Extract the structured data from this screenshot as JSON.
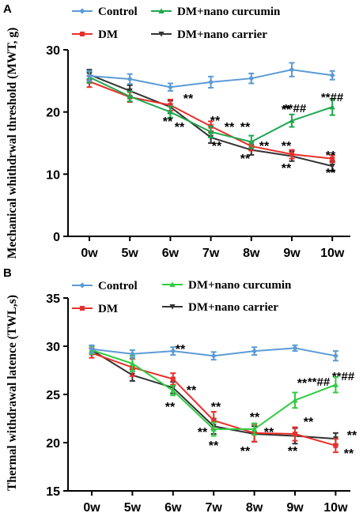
{
  "chart_data": [
    {
      "type": "line",
      "panel_label": "A",
      "title": "",
      "xlabel": "",
      "ylabel": "Mechanical whithdrwal threshold (MWT, g)",
      "ylim": [
        0,
        30
      ],
      "yticks": [
        "0",
        "10",
        "20",
        "30"
      ],
      "categories": [
        "0w",
        "5w",
        "6w",
        "7w",
        "8w",
        "9w",
        "10w"
      ],
      "legend_position": "top",
      "series": [
        {
          "name": "Control",
          "color": "#5b9bd5",
          "marker": "diamond",
          "values": [
            25.8,
            25.3,
            24.0,
            24.8,
            25.4,
            26.8,
            25.9
          ],
          "errors": [
            0.8,
            0.8,
            0.6,
            0.9,
            0.8,
            1.1,
            0.7
          ]
        },
        {
          "name": "DM",
          "color": "#e8302a",
          "marker": "square",
          "values": [
            24.9,
            22.4,
            21.1,
            17.7,
            14.5,
            13.2,
            12.5
          ],
          "errors": [
            0.9,
            0.8,
            0.9,
            0.8,
            0.7,
            0.7,
            0.6
          ]
        },
        {
          "name": "DM+nano curcumin",
          "color": "#1fa84f",
          "marker": "triangle",
          "values": [
            25.6,
            22.5,
            20.0,
            16.8,
            15.2,
            18.6,
            20.8
          ],
          "errors": [
            0.9,
            0.8,
            0.9,
            0.9,
            1.0,
            1.0,
            1.3
          ]
        },
        {
          "name": "DM+nano carrier",
          "color": "#333333",
          "marker": "triangle-down",
          "values": [
            26.0,
            23.4,
            20.8,
            15.9,
            13.9,
            12.9,
            11.3
          ],
          "errors": [
            0.8,
            0.9,
            1.0,
            0.9,
            0.8,
            0.8,
            0.8
          ]
        }
      ],
      "annotations": [
        "**",
        "**",
        "**",
        "**",
        "**",
        "**",
        "**",
        "**",
        "**",
        "**",
        "**##",
        "**",
        "**",
        "**##",
        "**",
        "**"
      ]
    },
    {
      "type": "line",
      "panel_label": "B",
      "title": "",
      "xlabel": "",
      "ylabel": "Thermal withdrawal latence (TWL,s)",
      "ylim": [
        15,
        35
      ],
      "yticks": [
        "15",
        "20",
        "25",
        "30",
        "35"
      ],
      "categories": [
        "0w",
        "5w",
        "6w",
        "7w",
        "8w",
        "9w",
        "10w"
      ],
      "legend_position": "top",
      "series": [
        {
          "name": "Control",
          "color": "#5b9bd5",
          "marker": "diamond",
          "values": [
            29.7,
            29.2,
            29.5,
            29.0,
            29.5,
            29.8,
            29.0
          ],
          "errors": [
            0.4,
            0.4,
            0.4,
            0.4,
            0.4,
            0.3,
            0.5
          ]
        },
        {
          "name": "DM",
          "color": "#e8302a",
          "marker": "square",
          "values": [
            29.3,
            27.8,
            26.6,
            22.3,
            21.0,
            20.9,
            19.7
          ],
          "errors": [
            0.5,
            0.9,
            0.6,
            0.9,
            0.9,
            0.7,
            0.7
          ]
        },
        {
          "name": "DM+nano curcumin",
          "color": "#2ecc40",
          "marker": "triangle",
          "values": [
            29.6,
            28.2,
            25.4,
            21.4,
            21.4,
            24.4,
            26.0
          ],
          "errors": [
            0.4,
            0.8,
            0.5,
            0.7,
            0.6,
            0.8,
            0.8
          ]
        },
        {
          "name": "DM+nano carrier",
          "color": "#333333",
          "marker": "triangle-down",
          "values": [
            29.6,
            27.0,
            25.7,
            21.7,
            20.9,
            20.7,
            20.4
          ],
          "errors": [
            0.4,
            0.6,
            0.6,
            0.8,
            0.8,
            0.8,
            0.6
          ]
        }
      ],
      "annotations": [
        "**",
        "**",
        "**",
        "**",
        "**",
        "**",
        "**",
        "**",
        "**",
        "**",
        "**##",
        "**",
        "**",
        "**##",
        "**",
        "**"
      ]
    }
  ]
}
